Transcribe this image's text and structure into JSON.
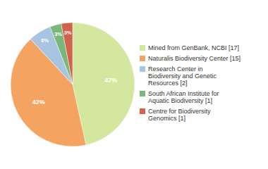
{
  "chart_data": {
    "type": "pie",
    "categories": [
      "Mined from GenBank, NCBI [17]",
      "Naturalis Biodiversity Center [15]",
      "Research Center in\nBiodiversity and Genetic\nResources [2]",
      "South African Institute for\nAquatic Biodiversity [1]",
      "Centre for Biodiversity\nGenomics [1]"
    ],
    "values": [
      47,
      42,
      6,
      3,
      3
    ],
    "value_labels": [
      "47%",
      "42%",
      "6%",
      "3%",
      "3%"
    ],
    "colors": [
      "#d4e79e",
      "#f4a460",
      "#a8c4e0",
      "#7ab87a",
      "#d4614a"
    ],
    "data_labels": true,
    "legend": "right"
  }
}
